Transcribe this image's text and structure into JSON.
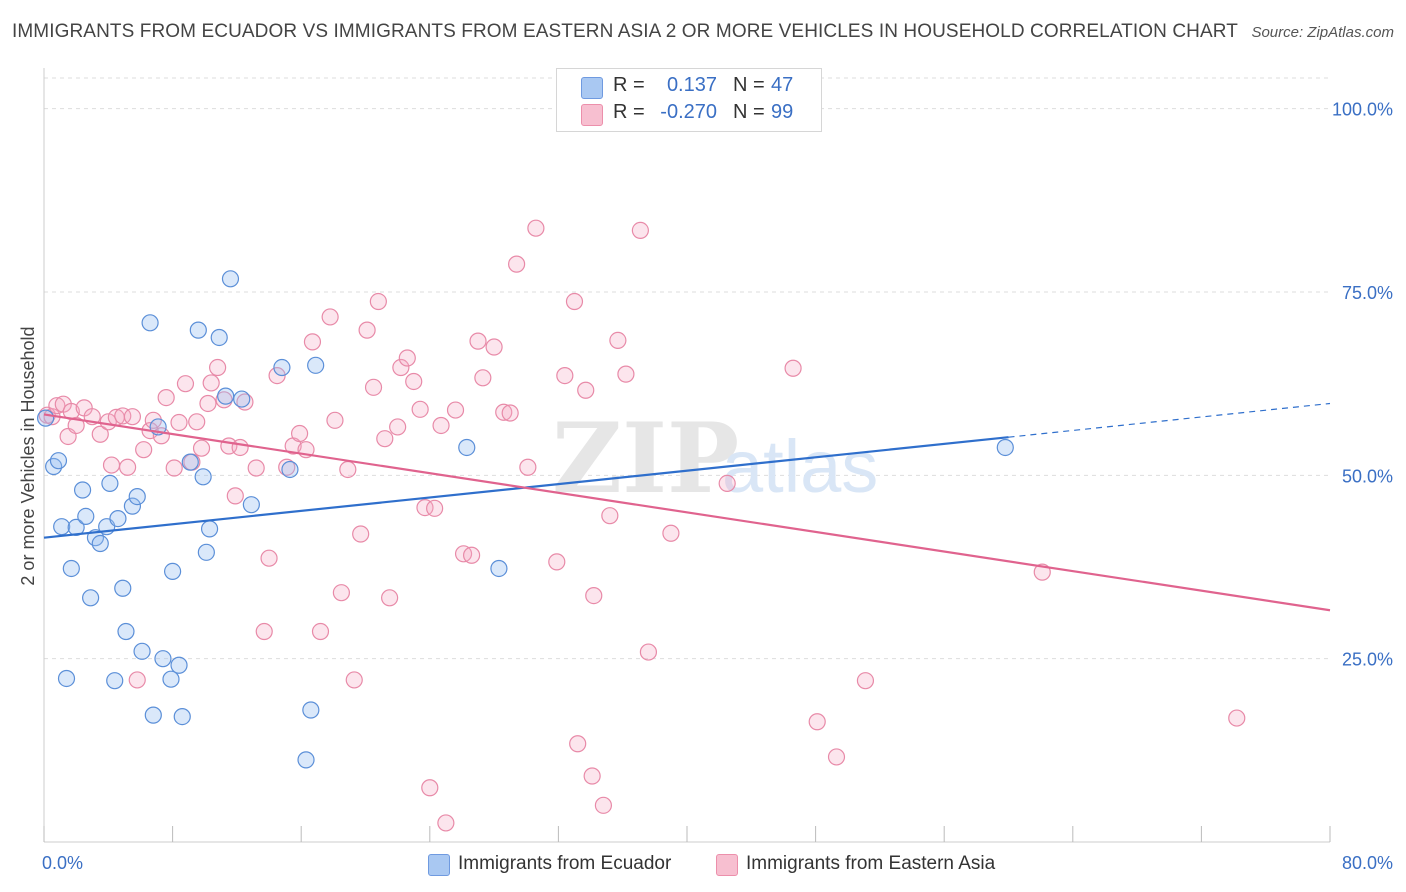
{
  "title": "IMMIGRANTS FROM ECUADOR VS IMMIGRANTS FROM EASTERN ASIA 2 OR MORE VEHICLES IN HOUSEHOLD CORRELATION CHART",
  "source": "Source: ZipAtlas.com",
  "watermark": {
    "zip": "ZIP",
    "atlas": "atlas"
  },
  "legend": {
    "rows": [
      {
        "r_label": "R =",
        "r_value": "0.137",
        "n_label": "N =",
        "n_value": "47",
        "color": "#a9c8f2",
        "border": "#6f9ae0"
      },
      {
        "r_label": "R =",
        "r_value": "-0.270",
        "n_label": "N =",
        "n_value": "99",
        "color": "#f7bfd0",
        "border": "#ec8fab"
      }
    ]
  },
  "bottom_legend": [
    {
      "label": "Immigrants from Ecuador",
      "color": "#a9c8f2",
      "border": "#6f9ae0"
    },
    {
      "label": "Immigrants from Eastern Asia",
      "color": "#f7bfd0",
      "border": "#ec8fab"
    }
  ],
  "colors": {
    "ecuador_fill": "rgba(150,190,240,0.35)",
    "ecuador_stroke": "#5b8fd8",
    "ecuador_line": "#2f6fcc",
    "asia_fill": "rgba(245,170,195,0.30)",
    "asia_stroke": "#e88aa8",
    "asia_line": "#e0638e",
    "grid": "#dddddd",
    "tick_label": "#3a6fc4"
  },
  "chart_data": {
    "type": "scatter",
    "title": "IMMIGRANTS FROM ECUADOR VS IMMIGRANTS FROM EASTERN ASIA 2 OR MORE VEHICLES IN HOUSEHOLD CORRELATION CHART",
    "xlabel": "",
    "ylabel": "2 or more Vehicles in Household",
    "xlim": [
      0,
      80
    ],
    "ylim": [
      0,
      105
    ],
    "x_tick_labels": [
      {
        "value": 0,
        "label": "0.0%"
      },
      {
        "value": 80,
        "label": "80.0%"
      }
    ],
    "y_tick_labels": [
      {
        "value": 25,
        "label": "25.0%"
      },
      {
        "value": 50,
        "label": "50.0%"
      },
      {
        "value": 75,
        "label": "75.0%"
      },
      {
        "value": 100,
        "label": "100.0%"
      }
    ],
    "grid": true,
    "legend_position": "top-center",
    "series": [
      {
        "name": "Immigrants from Ecuador",
        "r": 0.137,
        "n": 47,
        "trend": {
          "x0": 0,
          "y0": 41.5,
          "x1": 60,
          "y1": 55.2,
          "dash_to_x": 80,
          "dash_to_y": 59.8
        },
        "points": [
          [
            0.1,
            57.8
          ],
          [
            0.6,
            51.2
          ],
          [
            0.9,
            52.0
          ],
          [
            1.1,
            43.0
          ],
          [
            1.4,
            22.3
          ],
          [
            1.7,
            37.3
          ],
          [
            2.0,
            42.9
          ],
          [
            2.4,
            48.0
          ],
          [
            2.6,
            44.4
          ],
          [
            2.9,
            33.3
          ],
          [
            3.2,
            41.5
          ],
          [
            3.5,
            40.7
          ],
          [
            3.9,
            43.0
          ],
          [
            4.1,
            48.9
          ],
          [
            4.4,
            22.0
          ],
          [
            4.6,
            44.1
          ],
          [
            4.9,
            34.6
          ],
          [
            5.1,
            28.7
          ],
          [
            5.5,
            45.8
          ],
          [
            5.8,
            47.1
          ],
          [
            6.1,
            26.0
          ],
          [
            6.6,
            70.8
          ],
          [
            6.8,
            17.3
          ],
          [
            7.1,
            56.6
          ],
          [
            7.4,
            25.0
          ],
          [
            7.9,
            22.2
          ],
          [
            8.0,
            36.9
          ],
          [
            8.4,
            24.1
          ],
          [
            8.6,
            17.1
          ],
          [
            9.1,
            51.8
          ],
          [
            9.6,
            69.8
          ],
          [
            9.9,
            49.8
          ],
          [
            10.1,
            39.5
          ],
          [
            10.3,
            42.7
          ],
          [
            10.9,
            68.8
          ],
          [
            11.6,
            76.8
          ],
          [
            12.3,
            60.4
          ],
          [
            12.9,
            46.0
          ],
          [
            14.8,
            64.7
          ],
          [
            15.3,
            50.8
          ],
          [
            16.3,
            11.2
          ],
          [
            16.6,
            18.0
          ],
          [
            16.9,
            65.0
          ],
          [
            26.3,
            53.8
          ],
          [
            28.3,
            37.3
          ],
          [
            59.8,
            53.8
          ],
          [
            11.3,
            60.8
          ]
        ]
      },
      {
        "name": "Immigrants from Eastern Asia",
        "r": -0.27,
        "n": 99,
        "trend": {
          "x0": 0,
          "y0": 58.3,
          "x1": 80,
          "y1": 31.6
        },
        "points": [
          [
            0.2,
            58.2
          ],
          [
            0.5,
            58.0
          ],
          [
            0.8,
            59.5
          ],
          [
            1.2,
            59.7
          ],
          [
            1.5,
            55.3
          ],
          [
            1.7,
            58.7
          ],
          [
            2.0,
            56.8
          ],
          [
            2.5,
            59.2
          ],
          [
            3.0,
            58.0
          ],
          [
            3.5,
            55.6
          ],
          [
            4.0,
            57.3
          ],
          [
            4.2,
            51.4
          ],
          [
            4.5,
            57.9
          ],
          [
            4.9,
            58.1
          ],
          [
            5.2,
            51.1
          ],
          [
            5.5,
            58.0
          ],
          [
            5.8,
            22.1
          ],
          [
            6.2,
            53.5
          ],
          [
            6.6,
            56.1
          ],
          [
            6.8,
            57.5
          ],
          [
            7.3,
            55.4
          ],
          [
            7.6,
            60.6
          ],
          [
            8.1,
            51.0
          ],
          [
            8.4,
            57.2
          ],
          [
            8.8,
            62.5
          ],
          [
            9.2,
            51.8
          ],
          [
            9.5,
            57.3
          ],
          [
            9.8,
            53.7
          ],
          [
            10.2,
            59.8
          ],
          [
            10.4,
            62.6
          ],
          [
            10.8,
            64.7
          ],
          [
            11.2,
            60.3
          ],
          [
            11.5,
            54.0
          ],
          [
            11.9,
            47.2
          ],
          [
            12.2,
            53.8
          ],
          [
            12.5,
            60.0
          ],
          [
            13.2,
            51.0
          ],
          [
            13.7,
            28.7
          ],
          [
            14.0,
            38.7
          ],
          [
            14.5,
            63.6
          ],
          [
            15.1,
            51.1
          ],
          [
            15.5,
            54.0
          ],
          [
            15.9,
            55.7
          ],
          [
            16.3,
            53.5
          ],
          [
            16.7,
            68.2
          ],
          [
            17.2,
            28.7
          ],
          [
            17.8,
            71.6
          ],
          [
            18.1,
            57.5
          ],
          [
            18.5,
            34.0
          ],
          [
            18.9,
            50.8
          ],
          [
            19.3,
            22.1
          ],
          [
            19.7,
            42.0
          ],
          [
            20.1,
            69.8
          ],
          [
            20.5,
            62.0
          ],
          [
            20.8,
            73.7
          ],
          [
            21.2,
            55.0
          ],
          [
            21.5,
            33.3
          ],
          [
            22.0,
            56.6
          ],
          [
            22.2,
            64.7
          ],
          [
            22.6,
            66.0
          ],
          [
            23.0,
            62.8
          ],
          [
            23.4,
            59.0
          ],
          [
            23.7,
            45.6
          ],
          [
            24.0,
            7.4
          ],
          [
            24.3,
            45.5
          ],
          [
            24.7,
            56.8
          ],
          [
            25.0,
            2.6
          ],
          [
            25.6,
            58.9
          ],
          [
            26.1,
            39.3
          ],
          [
            26.6,
            39.1
          ],
          [
            27.0,
            68.3
          ],
          [
            27.3,
            63.3
          ],
          [
            28.0,
            67.5
          ],
          [
            28.6,
            58.6
          ],
          [
            29.0,
            58.5
          ],
          [
            29.4,
            78.8
          ],
          [
            30.1,
            51.1
          ],
          [
            30.6,
            83.7
          ],
          [
            31.9,
            38.2
          ],
          [
            32.4,
            63.6
          ],
          [
            33.0,
            73.7
          ],
          [
            33.2,
            13.4
          ],
          [
            33.7,
            61.6
          ],
          [
            34.2,
            33.6
          ],
          [
            34.8,
            5.0
          ],
          [
            35.2,
            44.5
          ],
          [
            35.7,
            68.4
          ],
          [
            36.2,
            63.8
          ],
          [
            37.1,
            83.4
          ],
          [
            37.6,
            25.9
          ],
          [
            39.0,
            42.1
          ],
          [
            42.5,
            48.9
          ],
          [
            46.6,
            64.6
          ],
          [
            48.1,
            16.4
          ],
          [
            49.3,
            11.6
          ],
          [
            51.1,
            22.0
          ],
          [
            62.1,
            36.8
          ],
          [
            74.2,
            16.9
          ],
          [
            34.1,
            9.0
          ]
        ]
      }
    ]
  }
}
